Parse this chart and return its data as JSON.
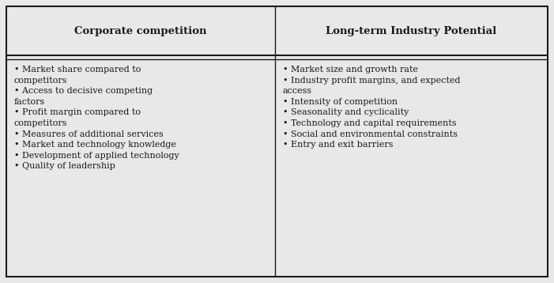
{
  "header_left": "Corporate competition",
  "header_right": "Long-term Industry Potential",
  "left_items": [
    "• Market share compared to\ncompetitors",
    "• Access to decisive competing\nfactors",
    "• Profit margin compared to\ncompetitors",
    "• Measures of additional services",
    "• Market and technology knowledge",
    "• Development of applied technology",
    "• Quality of leadership"
  ],
  "right_items": [
    "• Market size and growth rate",
    "• Industry profit margins, and expected\naccess",
    "• Intensity of competition",
    "• Seasonality and cyclicality",
    "• Technology and capital requirements",
    "• Social and environmental constraints",
    "• Entry and exit barriers"
  ],
  "bg_color": "#e8e8e8",
  "table_bg": "#ffffff",
  "border_color": "#1a1a1a",
  "text_color": "#1a1a1a",
  "header_fontsize": 9.5,
  "body_fontsize": 8.0,
  "figsize": [
    7.01,
    3.58
  ],
  "dpi": 100
}
